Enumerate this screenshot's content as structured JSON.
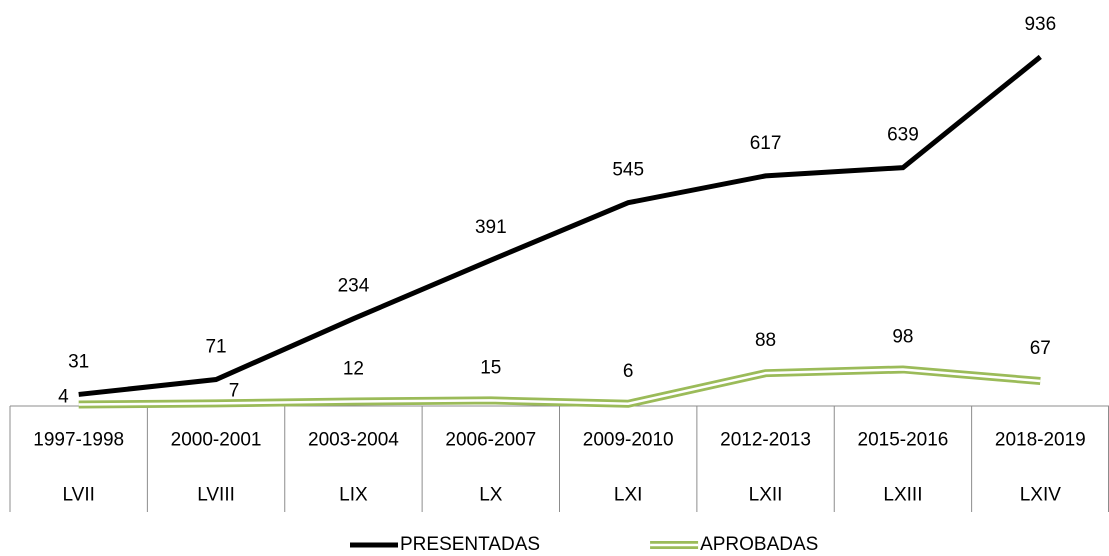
{
  "chart_data": {
    "type": "line",
    "categories": [
      "1997-1998",
      "2000-2001",
      "2003-2004",
      "2006-2007",
      "2009-2010",
      "2012-2013",
      "2015-2016",
      "2018-2019"
    ],
    "category_groups": [
      "LVII",
      "LVIII",
      "LIX",
      "LX",
      "LXI",
      "LXII",
      "LXIII",
      "LXIV"
    ],
    "ylim": [
      0,
      1000
    ],
    "legend": "bottom",
    "series": [
      {
        "name": "PRESENTADAS",
        "color": "#000000",
        "style": "single",
        "values": [
          31,
          71,
          234,
          391,
          545,
          617,
          639,
          936
        ]
      },
      {
        "name": "APROBADAS",
        "color": "#9bbb59",
        "style": "double",
        "values": [
          4,
          7,
          12,
          15,
          6,
          88,
          98,
          67
        ]
      }
    ]
  }
}
